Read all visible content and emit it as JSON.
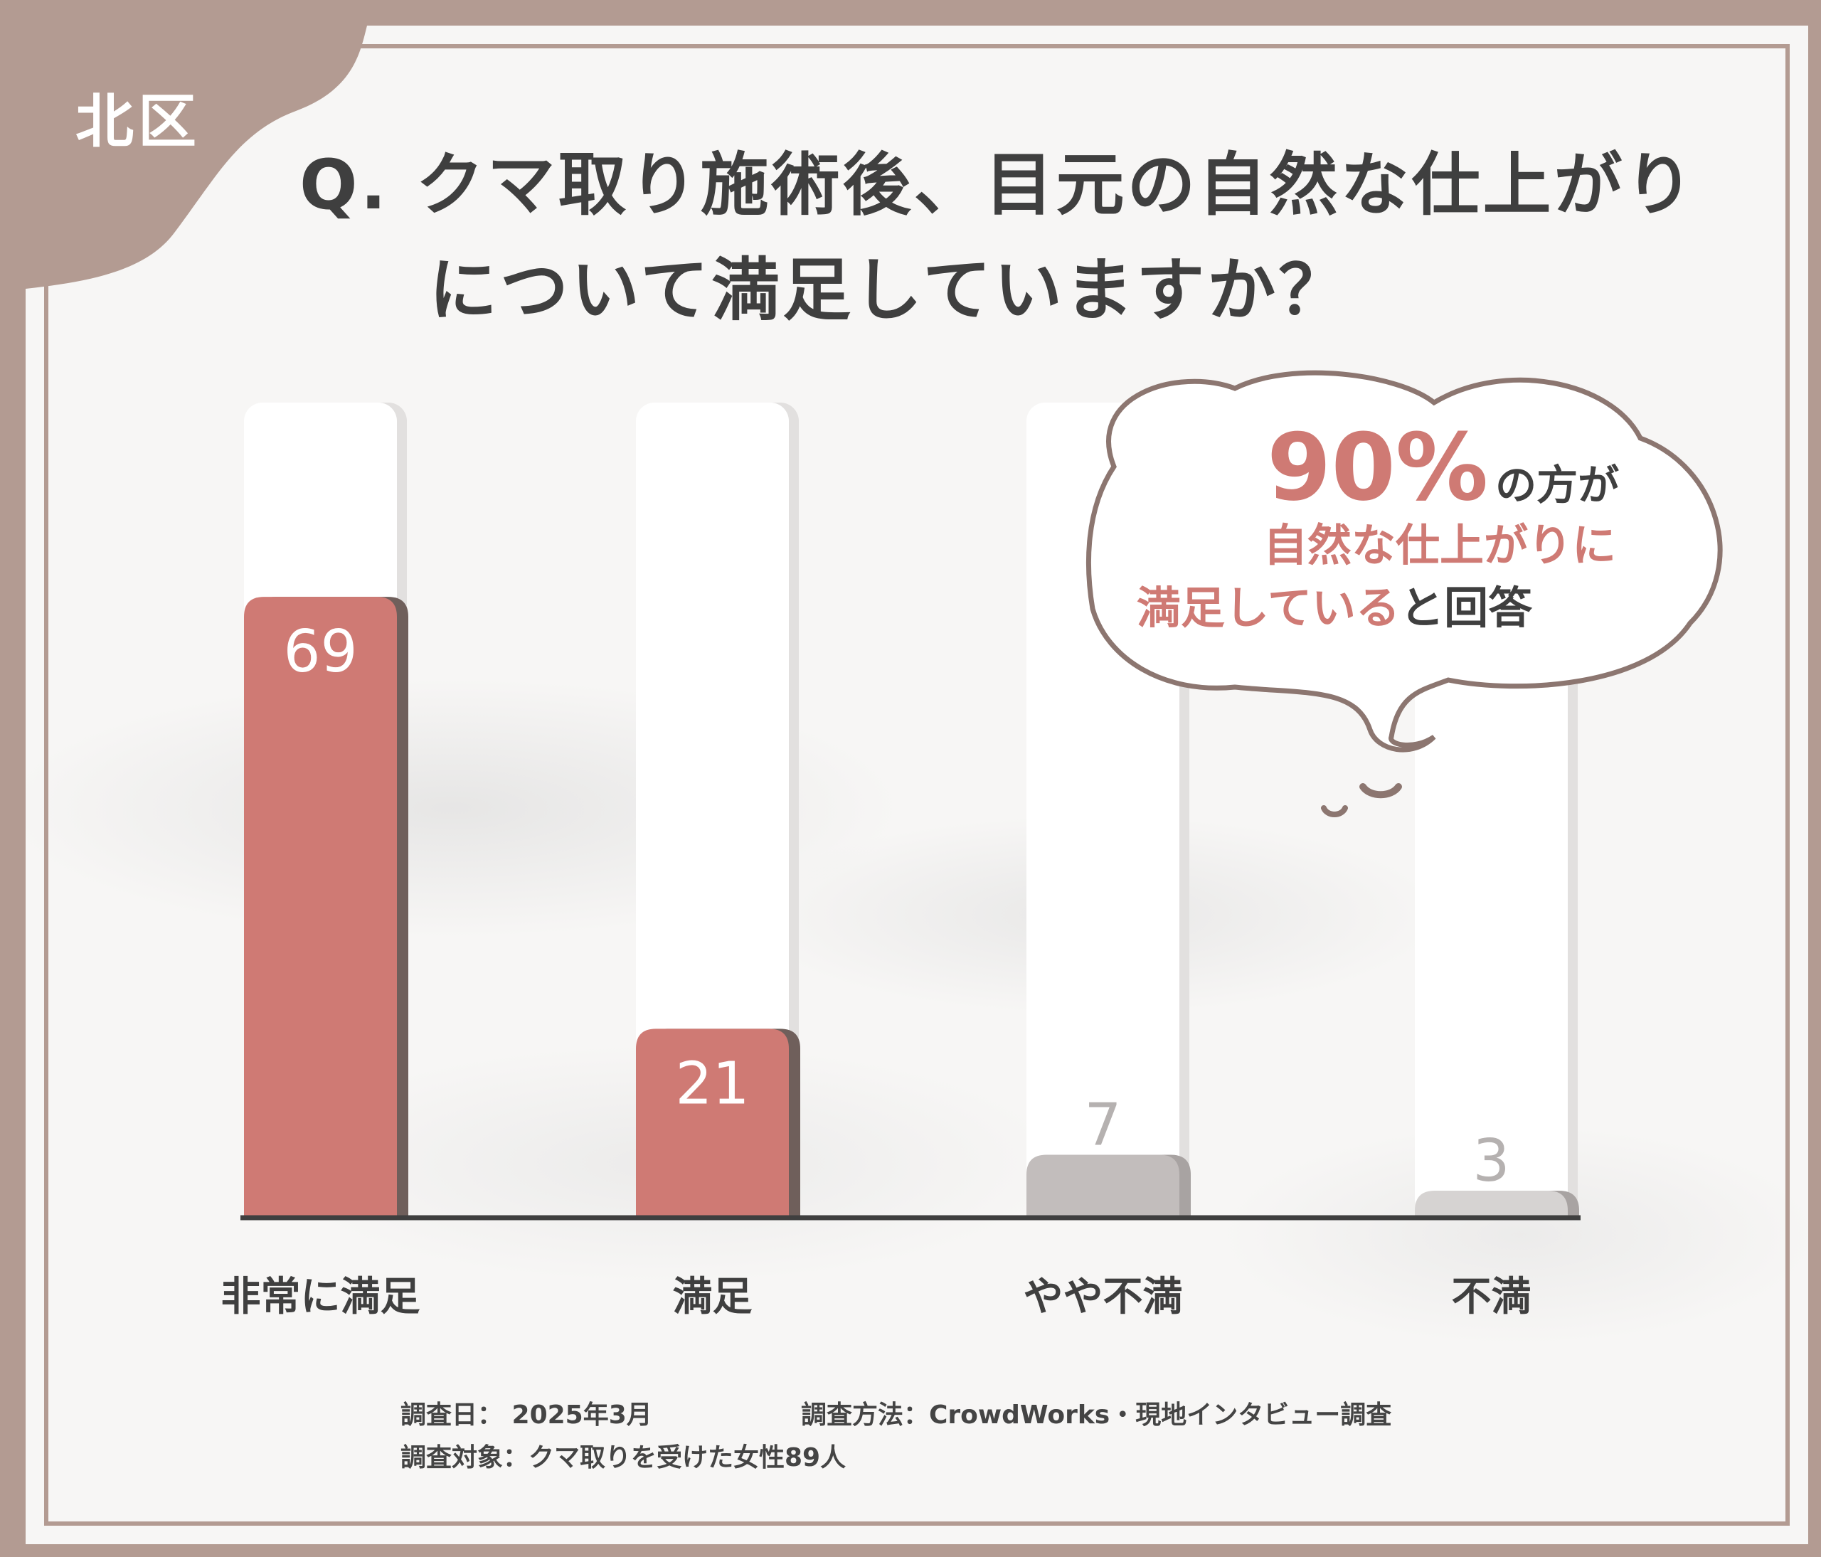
{
  "ward_label": "北区",
  "question": {
    "line1": "Q. クマ取り施術後、目元の自然な仕上がり",
    "line2": "について満足していますか？"
  },
  "callout": {
    "pct": "90%",
    "line1_rest": "の方が",
    "line2": "自然な仕上がりに",
    "line3_red": "満足している",
    "line3_rest": "と回答"
  },
  "footer": {
    "date": "調査日： 2025年3月",
    "method": "調査方法：CrowdWorks・現地インタビュー調査",
    "subject": "調査対象：クマ取りを受けた女性89人"
  },
  "colors": {
    "frame": "#b39b92",
    "highlight": "#cf7a74",
    "muted": "#c2bdbc",
    "muted_light": "#d6d3d2",
    "text": "#3f3f3f"
  },
  "chart_data": {
    "type": "bar",
    "categories": [
      "非常に満足",
      "満足",
      "やや不満",
      "不満"
    ],
    "values": [
      69,
      21,
      7,
      3
    ],
    "value_labels": [
      "69",
      "21",
      "7",
      "3"
    ],
    "bar_colors": [
      "#cf7a74",
      "#cf7a74",
      "#c2bdbc",
      "#d6d3d2"
    ],
    "ylim": [
      0,
      100
    ],
    "grid": false,
    "legend": "none"
  }
}
